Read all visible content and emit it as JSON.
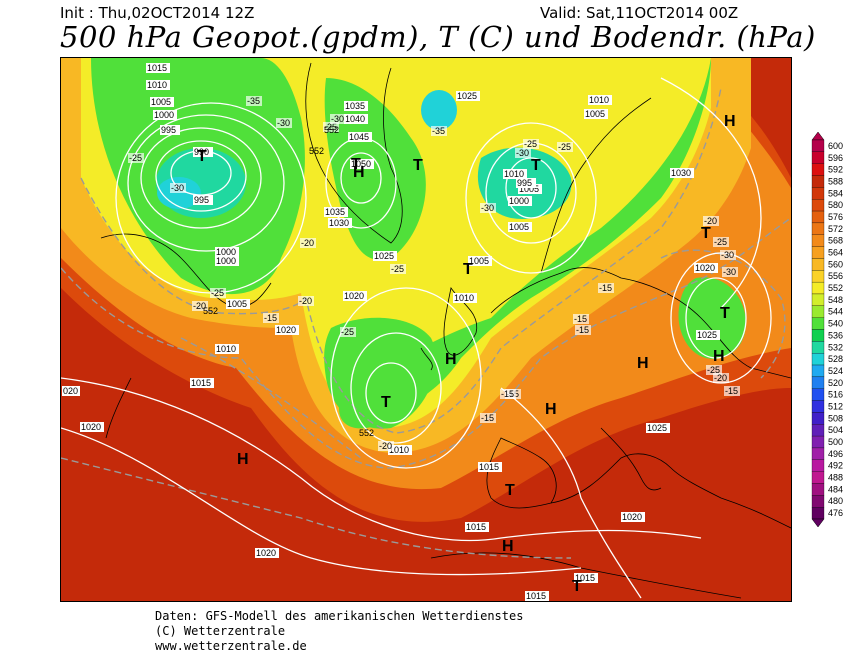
{
  "header": {
    "init": "Init : Thu,02OCT2014 12Z",
    "valid": "Valid: Sat,11OCT2014 00Z",
    "title": "500 hPa Geopot.(gpdm), T (C) und Bodendr. (hPa)"
  },
  "footer": {
    "line1": "Daten: GFS-Modell des amerikanischen Wetterdienstes",
    "line2": "(C) Wetterzentrale",
    "line3": "www.wetterzentrale.de"
  },
  "legend": {
    "values": [
      "600",
      "596",
      "592",
      "588",
      "584",
      "580",
      "576",
      "572",
      "568",
      "564",
      "560",
      "556",
      "552",
      "548",
      "544",
      "540",
      "536",
      "532",
      "528",
      "524",
      "520",
      "516",
      "512",
      "508",
      "504",
      "500",
      "496",
      "492",
      "488",
      "484",
      "480",
      "476"
    ],
    "colors": [
      "#b4004a",
      "#c8002c",
      "#dc1010",
      "#c42a0a",
      "#d2380a",
      "#dc4a0c",
      "#e4600e",
      "#ec7614",
      "#f28a1a",
      "#f6a020",
      "#f8b824",
      "#fad228",
      "#f4ec28",
      "#d2ee2c",
      "#9aea30",
      "#50e03a",
      "#10d050",
      "#20d8a0",
      "#20d2d8",
      "#20aaf0",
      "#2080f0",
      "#2050f0",
      "#3030e0",
      "#4020c8",
      "#6020b8",
      "#8020b0",
      "#a020a8",
      "#b818a0",
      "#c01890",
      "#a01080",
      "#800870",
      "#600060"
    ]
  },
  "map": {
    "isobars": [
      "1015",
      "1010",
      "1005",
      "1000",
      "995",
      "990",
      "995",
      "1000",
      "1000",
      "1005",
      "1020",
      "1010",
      "1015",
      "020",
      "1020",
      "1020",
      "1035",
      "1040",
      "1045",
      "1050",
      "1035",
      "1030",
      "1025",
      "1020",
      "1025",
      "1010",
      "1005",
      "1010",
      "1005",
      "995",
      "1000",
      "1005",
      "1005",
      "1010",
      "1030",
      "1020",
      "1025",
      "1025",
      "1015",
      "1015",
      "1020",
      "1015",
      "1015",
      "1010"
    ],
    "temps": [
      "-35",
      "-30",
      "-25",
      "-30",
      "-25",
      "-25",
      "-20",
      "-20",
      "-25",
      "-30",
      "-35",
      "-25",
      "-30",
      "-25",
      "-15",
      "-20",
      "-25",
      "-30",
      "-20",
      "-15",
      "-15",
      "-15",
      "-15",
      "-15",
      "-25",
      "-20",
      "-15",
      "-20",
      "-15",
      "-30",
      "-30",
      "-25"
    ],
    "geo": [
      "552",
      "552",
      "552",
      "552"
    ],
    "centers": [
      "H",
      "H",
      "H",
      "H",
      "H",
      "H",
      "H",
      "H",
      "T",
      "T",
      "T",
      "T",
      "T",
      "T",
      "T",
      "T",
      "T",
      "T"
    ]
  }
}
